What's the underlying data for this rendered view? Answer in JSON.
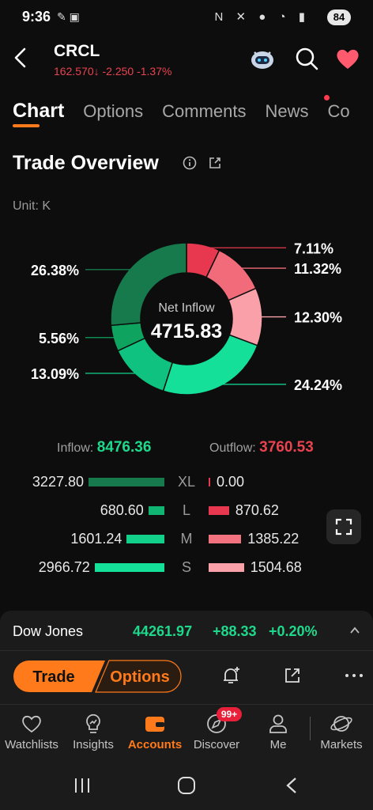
{
  "status_bar": {
    "time": "9:36",
    "battery": "84"
  },
  "header": {
    "ticker": "CRCL",
    "price": "162.570",
    "arrow": "↓",
    "change": "-2.250",
    "change_pct": "-1.37%"
  },
  "tabs": [
    {
      "label": "Chart",
      "active": true
    },
    {
      "label": "Options"
    },
    {
      "label": "Comments"
    },
    {
      "label": "News"
    },
    {
      "label": "Co"
    }
  ],
  "section": {
    "title": "Trade Overview",
    "unit": "Unit: K"
  },
  "chart_data": {
    "type": "pie",
    "center_label": "Net Inflow",
    "center_value": "4715.83",
    "slices": [
      {
        "label": "7.11%",
        "value": 7.11,
        "color": "#e8384f"
      },
      {
        "label": "11.32%",
        "value": 11.32,
        "color": "#f26b7a"
      },
      {
        "label": "12.30%",
        "value": 12.3,
        "color": "#f9a0a8"
      },
      {
        "label": "24.24%",
        "value": 24.24,
        "color": "#14e09a"
      },
      {
        "label": "13.09%",
        "value": 13.09,
        "color": "#10c27f"
      },
      {
        "label": "5.56%",
        "value": 5.56,
        "color": "#0ea35f"
      },
      {
        "label": "26.38%",
        "value": 26.38,
        "color": "#167a4d"
      }
    ]
  },
  "flows": {
    "inflow_label": "Inflow:",
    "inflow_value": "8476.36",
    "outflow_label": "Outflow:",
    "outflow_value": "3760.53",
    "rows": [
      {
        "label": "XL",
        "in": "3227.80",
        "in_val": 3227.8,
        "in_color": "#167a4d",
        "out": "0.00",
        "out_val": 0,
        "out_color": "#e8384f"
      },
      {
        "label": "L",
        "in": "680.60",
        "in_val": 680.6,
        "in_color": "#10b573",
        "out": "870.62",
        "out_val": 870.62,
        "out_color": "#e8384f"
      },
      {
        "label": "M",
        "in": "1601.24",
        "in_val": 1601.24,
        "in_color": "#12d08a",
        "out": "1385.22",
        "out_val": 1385.22,
        "out_color": "#f2737f"
      },
      {
        "label": "S",
        "in": "2966.72",
        "in_val": 2966.72,
        "in_color": "#14e09a",
        "out": "1504.68",
        "out_val": 1504.68,
        "out_color": "#f9a0a8"
      }
    ]
  },
  "index_bar": {
    "name": "Dow Jones",
    "value": "44261.97",
    "change": "+88.33",
    "change_pct": "+0.20%"
  },
  "actions": {
    "trade": "Trade",
    "options": "Options"
  },
  "nav": [
    {
      "label": "Watchlists",
      "icon": "heart-icon"
    },
    {
      "label": "Insights",
      "icon": "bulb-icon"
    },
    {
      "label": "Accounts",
      "icon": "wallet-icon",
      "active": true
    },
    {
      "label": "Discover",
      "icon": "compass-icon",
      "badge": "99+"
    },
    {
      "label": "Me",
      "icon": "person-icon"
    },
    {
      "label": "Markets",
      "icon": "planet-icon"
    }
  ],
  "colors": {
    "accent": "#ff7a1a",
    "up": "#1ed98c",
    "down": "#e8434f"
  }
}
